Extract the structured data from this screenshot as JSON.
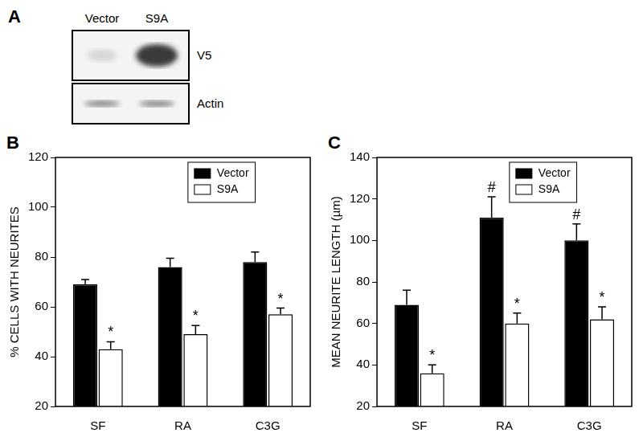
{
  "panel_a": {
    "panel": "A",
    "lanes": [
      "Vector",
      "S9A"
    ],
    "rows": [
      "V5",
      "Actin"
    ]
  },
  "chart_data": [
    {
      "panel": "B",
      "type": "bar",
      "categories": [
        "SF",
        "RA",
        "C3G"
      ],
      "y_label": "% CELLS WITH NEURITES",
      "ylim": [
        20,
        120
      ],
      "yticks": [
        20,
        40,
        60,
        80,
        100,
        120
      ],
      "grid": false,
      "legend": "upper center",
      "series": [
        {
          "name": "Vector",
          "color": "#000000",
          "values": [
            69,
            76,
            78
          ],
          "errors": [
            2,
            3.5,
            4
          ]
        },
        {
          "name": "S9A",
          "color": "#ffffff",
          "values": [
            43,
            49,
            57
          ],
          "errors": [
            3,
            3.5,
            2.5
          ],
          "annotations": [
            "*",
            "*",
            "*"
          ]
        }
      ]
    },
    {
      "panel": "C",
      "type": "bar",
      "categories": [
        "SF",
        "RA",
        "C3G"
      ],
      "y_label": "MEAN NEURITE LENGTH (µm)",
      "ylim": [
        20,
        140
      ],
      "yticks": [
        20,
        40,
        60,
        80,
        100,
        120,
        140
      ],
      "grid": false,
      "legend": "upper center",
      "series": [
        {
          "name": "Vector",
          "color": "#000000",
          "values": [
            69,
            111,
            100
          ],
          "errors": [
            7,
            10,
            8
          ],
          "annotations": [
            null,
            "#",
            "#"
          ]
        },
        {
          "name": "S9A",
          "color": "#ffffff",
          "values": [
            36,
            60,
            62
          ],
          "errors": [
            4,
            5,
            6
          ],
          "annotations": [
            "*",
            "*",
            "*"
          ]
        }
      ]
    }
  ]
}
